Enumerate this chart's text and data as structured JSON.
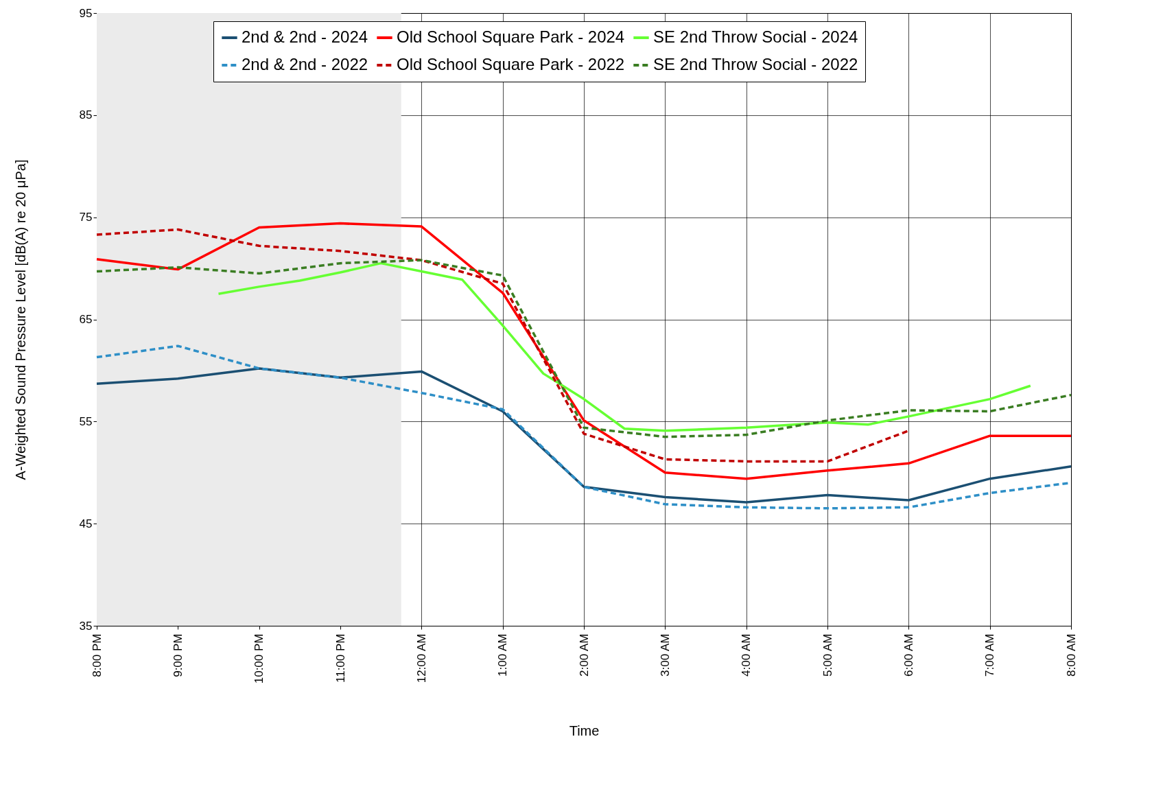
{
  "chart_data": {
    "type": "line",
    "xlabel": "Time",
    "ylabel": "A-Weighted Sound Pressure Level [dB(A) re 20 μPa]",
    "x": [
      "2000-01-01T20:00",
      "2000-01-01T21:00",
      "2000-01-01T22:00",
      "2000-01-01T23:00",
      "2000-01-02T00:00",
      "2000-01-02T01:00",
      "2000-01-02T02:00",
      "2000-01-02T03:00",
      "2000-01-02T04:00",
      "2000-01-02T05:00",
      "2000-01-02T06:00",
      "2000-01-02T07:00",
      "2000-01-02T08:00"
    ],
    "xlim": [
      "2000-01-01T20:00",
      "2000-01-02T08:00"
    ],
    "xticks": [
      {
        "value": "2000-01-01T20:00",
        "label": "8:00 PM"
      },
      {
        "value": "2000-01-01T21:00",
        "label": "9:00 PM"
      },
      {
        "value": "2000-01-01T22:00",
        "label": "10:00 PM"
      },
      {
        "value": "2000-01-01T23:00",
        "label": "11:00 PM"
      },
      {
        "value": "2000-01-02T00:00",
        "label": "12:00 AM"
      },
      {
        "value": "2000-01-02T01:00",
        "label": "1:00 AM"
      },
      {
        "value": "2000-01-02T02:00",
        "label": "2:00 AM"
      },
      {
        "value": "2000-01-02T03:00",
        "label": "3:00 AM"
      },
      {
        "value": "2000-01-02T04:00",
        "label": "4:00 AM"
      },
      {
        "value": "2000-01-02T05:00",
        "label": "5:00 AM"
      },
      {
        "value": "2000-01-02T06:00",
        "label": "6:00 AM"
      },
      {
        "value": "2000-01-02T07:00",
        "label": "7:00 AM"
      },
      {
        "value": "2000-01-02T08:00",
        "label": "8:00 AM"
      }
    ],
    "ylim": [
      35,
      95
    ],
    "yticks": [
      35,
      45,
      55,
      65,
      75,
      85,
      95
    ],
    "grid": true,
    "legend": "top",
    "bands": [
      {
        "axis": "x",
        "from": "2000-01-01T20:00",
        "to": "2000-01-01T23:45",
        "color": "#ebebeb"
      }
    ],
    "series": [
      {
        "name": "2nd & 2nd - 2024",
        "color": "#1b4f72",
        "line_style": "solid",
        "values": [
          58.7,
          59.2,
          60.2,
          59.3,
          59.9,
          56.0,
          48.6,
          47.6,
          47.1,
          47.8,
          47.3,
          49.4,
          50.6
        ]
      },
      {
        "name": "Old School Square Park - 2024",
        "color": "#ff0000",
        "line_style": "solid",
        "values": [
          70.9,
          69.9,
          74.0,
          74.4,
          74.1,
          67.6,
          55.1,
          50.0,
          49.4,
          50.2,
          50.9,
          53.6,
          53.6
        ]
      },
      {
        "name": "SE 2nd Throw Social - 2024",
        "color": "#66ff33",
        "line_style": "solid",
        "x": [
          "2000-01-01T21:30",
          "2000-01-01T22:00",
          "2000-01-01T22:30",
          "2000-01-01T23:00",
          "2000-01-01T23:30",
          "2000-01-02T00:00",
          "2000-01-02T00:30",
          "2000-01-02T01:00",
          "2000-01-02T01:30",
          "2000-01-02T02:00",
          "2000-01-02T02:30",
          "2000-01-02T03:00",
          "2000-01-02T04:00",
          "2000-01-02T05:00",
          "2000-01-02T05:30",
          "2000-01-02T06:00",
          "2000-01-02T07:00",
          "2000-01-02T07:30"
        ],
        "values": [
          67.5,
          68.2,
          68.8,
          69.6,
          70.5,
          69.7,
          68.9,
          64.4,
          59.7,
          57.2,
          54.3,
          54.1,
          54.4,
          54.9,
          54.7,
          55.5,
          57.2,
          58.5
        ]
      },
      {
        "name": "2nd & 2nd - 2022",
        "color": "#2e8fc7",
        "line_style": "dashed",
        "values": [
          61.3,
          62.4,
          60.2,
          59.3,
          57.8,
          56.2,
          48.6,
          46.9,
          46.6,
          46.5,
          46.6,
          48.0,
          49.0
        ]
      },
      {
        "name": "Old School Square Park - 2022",
        "color": "#c00000",
        "line_style": "dashed",
        "values": [
          73.3,
          73.8,
          72.2,
          71.7,
          70.8,
          68.5,
          53.8,
          51.3,
          51.1,
          51.1,
          54.1,
          null,
          null
        ]
      },
      {
        "name": "SE 2nd Throw Social - 2022",
        "color": "#3a7d22",
        "line_style": "dashed",
        "values": [
          69.7,
          70.1,
          69.5,
          70.5,
          70.8,
          69.3,
          54.4,
          53.5,
          53.7,
          55.1,
          56.1,
          56.0,
          57.6
        ]
      }
    ]
  }
}
